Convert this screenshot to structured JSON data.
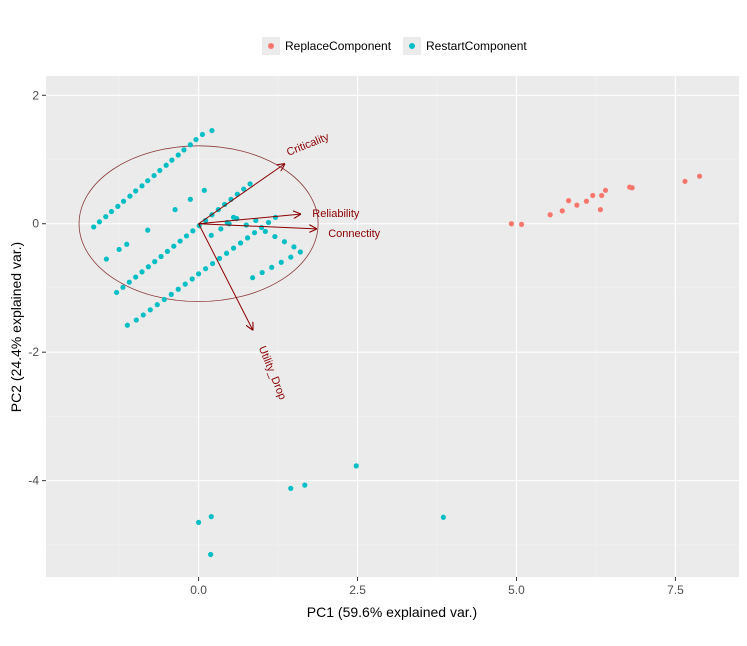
{
  "chart_data": {
    "type": "scatter",
    "title": "",
    "xlabel": "PC1 (59.6% explained var.)",
    "ylabel": "PC2 (24.4% explained var.)",
    "xlim": [
      -2.4,
      8.5
    ],
    "ylim": [
      -5.5,
      2.3
    ],
    "x_ticks": [
      0.0,
      2.5,
      5.0,
      7.5
    ],
    "x_tick_labels": [
      "0.0",
      "2.5",
      "5.0",
      "7.5"
    ],
    "y_ticks": [
      -4,
      -2,
      0,
      2
    ],
    "y_tick_labels": [
      "-4",
      "-2",
      "0",
      "2"
    ],
    "grid": true,
    "legend_position": "top",
    "series": [
      {
        "name": "ReplaceComponent",
        "color": "#F8766D",
        "points": [
          [
            4.92,
            0.0
          ],
          [
            5.08,
            -0.01
          ],
          [
            5.53,
            0.14
          ],
          [
            5.72,
            0.2
          ],
          [
            5.82,
            0.36
          ],
          [
            5.95,
            0.29
          ],
          [
            6.1,
            0.35
          ],
          [
            6.2,
            0.44
          ],
          [
            6.32,
            0.22
          ],
          [
            6.34,
            0.44
          ],
          [
            6.4,
            0.52
          ],
          [
            6.78,
            0.57
          ],
          [
            6.82,
            0.56
          ],
          [
            7.65,
            0.66
          ],
          [
            7.88,
            0.74
          ]
        ]
      },
      {
        "name": "RestartComponent",
        "color": "#00BFC4",
        "points": [
          [
            -1.65,
            -0.05
          ],
          [
            -1.56,
            0.03
          ],
          [
            -1.46,
            0.11
          ],
          [
            -1.37,
            0.19
          ],
          [
            -1.27,
            0.27
          ],
          [
            -1.18,
            0.35
          ],
          [
            -1.08,
            0.43
          ],
          [
            -0.99,
            0.51
          ],
          [
            -0.89,
            0.59
          ],
          [
            -0.8,
            0.67
          ],
          [
            -0.7,
            0.75
          ],
          [
            -0.61,
            0.83
          ],
          [
            -0.51,
            0.91
          ],
          [
            -0.42,
            0.99
          ],
          [
            -0.32,
            1.07
          ],
          [
            -0.23,
            1.15
          ],
          [
            -0.13,
            1.23
          ],
          [
            -0.04,
            1.31
          ],
          [
            0.06,
            1.39
          ],
          [
            0.21,
            1.45
          ],
          [
            -0.37,
            0.22
          ],
          [
            -0.13,
            0.38
          ],
          [
            0.09,
            0.52
          ],
          [
            -1.45,
            -0.55
          ],
          [
            -1.25,
            -0.4
          ],
          [
            -1.13,
            -0.32
          ],
          [
            -0.8,
            -0.1
          ],
          [
            -1.29,
            -1.07
          ],
          [
            -1.19,
            -0.99
          ],
          [
            -1.09,
            -0.91
          ],
          [
            -0.99,
            -0.83
          ],
          [
            -0.89,
            -0.75
          ],
          [
            -0.79,
            -0.67
          ],
          [
            -0.69,
            -0.59
          ],
          [
            -0.59,
            -0.51
          ],
          [
            -0.49,
            -0.43
          ],
          [
            -0.39,
            -0.35
          ],
          [
            -0.29,
            -0.27
          ],
          [
            -0.19,
            -0.19
          ],
          [
            -0.09,
            -0.11
          ],
          [
            0.01,
            -0.03
          ],
          [
            0.11,
            0.05
          ],
          [
            0.21,
            0.14
          ],
          [
            0.31,
            0.22
          ],
          [
            0.41,
            0.3
          ],
          [
            0.51,
            0.38
          ],
          [
            0.61,
            0.46
          ],
          [
            0.71,
            0.54
          ],
          [
            0.81,
            0.62
          ],
          [
            0.2,
            -0.18
          ],
          [
            0.35,
            -0.08
          ],
          [
            0.45,
            0.02
          ],
          [
            0.55,
            0.1
          ],
          [
            -1.12,
            -1.58
          ],
          [
            -0.98,
            -1.5
          ],
          [
            -0.87,
            -1.42
          ],
          [
            -0.76,
            -1.34
          ],
          [
            -0.65,
            -1.26
          ],
          [
            -0.54,
            -1.18
          ],
          [
            -0.43,
            -1.1
          ],
          [
            -0.32,
            -1.02
          ],
          [
            -0.21,
            -0.94
          ],
          [
            -0.1,
            -0.86
          ],
          [
            0.0,
            -0.78
          ],
          [
            0.11,
            -0.7
          ],
          [
            0.22,
            -0.62
          ],
          [
            0.33,
            -0.54
          ],
          [
            0.44,
            -0.46
          ],
          [
            0.55,
            -0.38
          ],
          [
            0.66,
            -0.3
          ],
          [
            0.77,
            -0.22
          ],
          [
            0.88,
            -0.14
          ],
          [
            0.99,
            -0.06
          ],
          [
            1.1,
            0.02
          ],
          [
            1.21,
            0.1
          ],
          [
            0.48,
            0.0
          ],
          [
            0.6,
            0.08
          ],
          [
            0.75,
            -0.02
          ],
          [
            0.9,
            0.05
          ],
          [
            1.05,
            -0.12
          ],
          [
            1.2,
            -0.2
          ],
          [
            1.35,
            -0.28
          ],
          [
            1.5,
            -0.36
          ],
          [
            1.6,
            -0.44
          ],
          [
            1.45,
            -0.52
          ],
          [
            1.3,
            -0.6
          ],
          [
            1.15,
            -0.68
          ],
          [
            1.0,
            -0.76
          ],
          [
            0.85,
            -0.84
          ],
          [
            0.0,
            -4.65
          ],
          [
            0.2,
            -4.56
          ],
          [
            0.19,
            -5.15
          ],
          [
            1.45,
            -4.12
          ],
          [
            1.67,
            -4.07
          ],
          [
            2.48,
            -3.77
          ],
          [
            3.85,
            -4.57
          ]
        ]
      }
    ],
    "loading_arrows": [
      {
        "name": "Criticality",
        "x": 1.35,
        "y": 0.93
      },
      {
        "name": "Reliability",
        "x": 1.6,
        "y": 0.15
      },
      {
        "name": "Connectity",
        "x": 1.85,
        "y": -0.08
      },
      {
        "name": "Utility_Drop",
        "x": 0.85,
        "y": -1.65
      }
    ],
    "circle": {
      "center_x": 0.0,
      "center_y": 0.0,
      "radius": 1.88,
      "color": "#8b3a3a"
    }
  }
}
